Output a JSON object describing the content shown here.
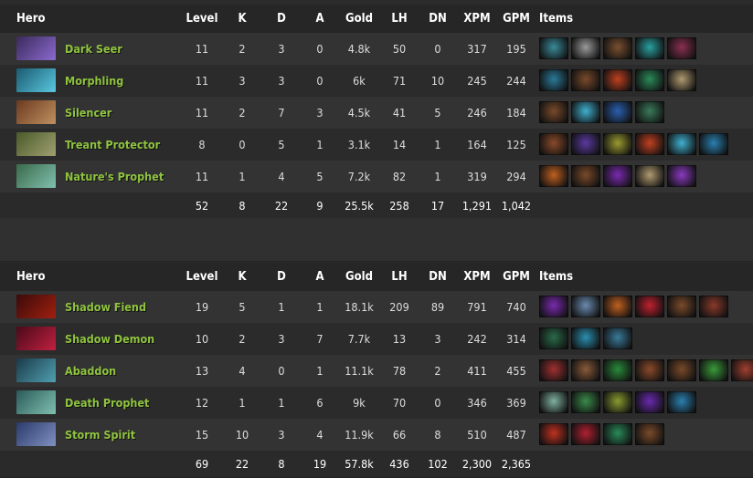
{
  "headers": {
    "hero": "Hero",
    "level": "Level",
    "k": "K",
    "d": "D",
    "a": "A",
    "gold": "Gold",
    "lh": "LH",
    "dn": "DN",
    "xpm": "XPM",
    "gpm": "GPM",
    "items": "Items"
  },
  "teams": [
    {
      "players": [
        {
          "hero": "Dark Seer",
          "avatar": [
            "#3b2a5a",
            "#8a6ad0"
          ],
          "level": "11",
          "k": "2",
          "d": "3",
          "a": "0",
          "gold": "4.8k",
          "lh": "50",
          "dn": "0",
          "xpm": "317",
          "gpm": "195",
          "items": [
            "#3a8a9a",
            "#9a9a9a",
            "#7a5030",
            "#2aa0a0",
            "#8a3050"
          ]
        },
        {
          "hero": "Morphling",
          "avatar": [
            "#1a5a70",
            "#5ac8e0"
          ],
          "level": "11",
          "k": "3",
          "d": "3",
          "a": "0",
          "gold": "6k",
          "lh": "71",
          "dn": "10",
          "xpm": "245",
          "gpm": "244",
          "items": [
            "#2a7a9a",
            "#7a4a2a",
            "#c04020",
            "#2a8a5a",
            "#b09a70"
          ]
        },
        {
          "hero": "Silencer",
          "avatar": [
            "#6a3a20",
            "#c09060"
          ],
          "level": "11",
          "k": "2",
          "d": "7",
          "a": "3",
          "gold": "4.5k",
          "lh": "41",
          "dn": "5",
          "xpm": "246",
          "gpm": "184",
          "items": [
            "#7a4a2a",
            "#40b0d0",
            "#2a60b0",
            "#3a7a5a"
          ]
        },
        {
          "hero": "Treant Protector",
          "avatar": [
            "#4a5a2a",
            "#a0a070"
          ],
          "level": "8",
          "k": "0",
          "d": "5",
          "a": "1",
          "gold": "3.1k",
          "lh": "14",
          "dn": "1",
          "xpm": "164",
          "gpm": "125",
          "items": [
            "#8a4a2a",
            "#5a3aa0",
            "#9a9a30",
            "#c04020",
            "#40b0d0",
            "#2a80b0"
          ]
        },
        {
          "hero": "Nature's Prophet",
          "avatar": [
            "#3a6a4a",
            "#80c0b0"
          ],
          "level": "11",
          "k": "1",
          "d": "4",
          "a": "5",
          "gold": "7.2k",
          "lh": "82",
          "dn": "1",
          "xpm": "319",
          "gpm": "294",
          "items": [
            "#c06020",
            "#7a4a2a",
            "#7a2ab0",
            "#b09a70",
            "#8a3ac0"
          ]
        }
      ],
      "totals": {
        "level": "52",
        "k": "8",
        "d": "22",
        "a": "9",
        "gold": "25.5k",
        "lh": "258",
        "dn": "17",
        "xpm": "1,291",
        "gpm": "1,042"
      }
    },
    {
      "players": [
        {
          "hero": "Shadow Fiend",
          "avatar": [
            "#3a0a0a",
            "#a02010"
          ],
          "level": "19",
          "k": "5",
          "d": "1",
          "a": "1",
          "gold": "18.1k",
          "lh": "209",
          "dn": "89",
          "xpm": "791",
          "gpm": "740",
          "items": [
            "#7a2ab0",
            "#6a8ab0",
            "#c06020",
            "#c02030",
            "#7a4a2a",
            "#8a3a2a"
          ]
        },
        {
          "hero": "Shadow Demon",
          "avatar": [
            "#4a0a1a",
            "#c02040"
          ],
          "level": "10",
          "k": "2",
          "d": "3",
          "a": "7",
          "gold": "7.7k",
          "lh": "13",
          "dn": "3",
          "xpm": "242",
          "gpm": "314",
          "items": [
            "#2a6a4a",
            "#2a90b0",
            "#3a7a9a"
          ]
        },
        {
          "hero": "Abaddon",
          "avatar": [
            "#1a3a4a",
            "#50a0b0"
          ],
          "level": "13",
          "k": "4",
          "d": "0",
          "a": "1",
          "gold": "11.1k",
          "lh": "78",
          "dn": "2",
          "xpm": "411",
          "gpm": "455",
          "items": [
            "#a03030",
            "#8a5a3a",
            "#2a8a3a",
            "#8a4a2a",
            "#7a4a2a",
            "#3a9a3a",
            "#a04030"
          ]
        },
        {
          "hero": "Death Prophet",
          "avatar": [
            "#2a5a5a",
            "#80c0b0"
          ],
          "level": "12",
          "k": "1",
          "d": "1",
          "a": "6",
          "gold": "9k",
          "lh": "70",
          "dn": "0",
          "xpm": "346",
          "gpm": "369",
          "items": [
            "#80b0a0",
            "#3a8a4a",
            "#8a9a30",
            "#6a2ab0",
            "#2a80b0"
          ]
        },
        {
          "hero": "Storm Spirit",
          "avatar": [
            "#2a3a6a",
            "#8090c0"
          ],
          "level": "15",
          "k": "10",
          "d": "3",
          "a": "4",
          "gold": "11.9k",
          "lh": "66",
          "dn": "8",
          "xpm": "510",
          "gpm": "487",
          "items": [
            "#c03020",
            "#b02030",
            "#2a8a5a",
            "#7a4a2a"
          ]
        }
      ],
      "totals": {
        "level": "69",
        "k": "22",
        "d": "8",
        "a": "19",
        "gold": "57.8k",
        "lh": "436",
        "dn": "102",
        "xpm": "2,300",
        "gpm": "2,365"
      }
    }
  ]
}
